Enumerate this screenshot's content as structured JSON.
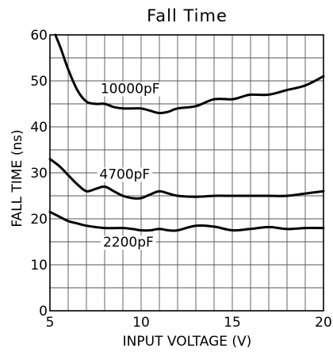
{
  "chart_data": {
    "type": "line",
    "title": "Fall Time",
    "xlabel": "INPUT VOLTAGE (V)",
    "ylabel": "FALL TIME (ns)",
    "xlim": [
      5,
      20
    ],
    "ylim": [
      0,
      60
    ],
    "x_ticks": [
      5,
      10,
      15,
      20
    ],
    "y_ticks": [
      0,
      10,
      20,
      30,
      40,
      50,
      60
    ],
    "x_grid_step": 1,
    "y_grid_step": 5,
    "grid": true,
    "series": [
      {
        "name": "10000pF",
        "points": [
          [
            5.3,
            60
          ],
          [
            5.6,
            57
          ],
          [
            6.0,
            52.5
          ],
          [
            6.5,
            48
          ],
          [
            7.0,
            45.5
          ],
          [
            7.5,
            45
          ],
          [
            8.0,
            45
          ],
          [
            8.5,
            44.3
          ],
          [
            9.0,
            44
          ],
          [
            9.5,
            44
          ],
          [
            10.0,
            44
          ],
          [
            10.5,
            43.5
          ],
          [
            11.0,
            43
          ],
          [
            11.5,
            43.3
          ],
          [
            12.0,
            44
          ],
          [
            13.0,
            44.5
          ],
          [
            14.0,
            46
          ],
          [
            15.0,
            46
          ],
          [
            15.5,
            46.5
          ],
          [
            16.0,
            47
          ],
          [
            17.0,
            47
          ],
          [
            18.0,
            48
          ],
          [
            19.0,
            49
          ],
          [
            20.0,
            51
          ]
        ]
      },
      {
        "name": "4700pF",
        "points": [
          [
            5.0,
            33
          ],
          [
            5.5,
            31.5
          ],
          [
            6.0,
            29.5
          ],
          [
            6.5,
            27.5
          ],
          [
            7.0,
            26
          ],
          [
            7.5,
            26.5
          ],
          [
            8.0,
            27
          ],
          [
            8.5,
            26
          ],
          [
            9.0,
            25
          ],
          [
            9.5,
            24.5
          ],
          [
            10.0,
            24.5
          ],
          [
            10.5,
            25.3
          ],
          [
            11.0,
            26
          ],
          [
            11.5,
            25.5
          ],
          [
            12.0,
            25
          ],
          [
            13.0,
            24.8
          ],
          [
            14.0,
            25
          ],
          [
            15.0,
            25
          ],
          [
            16.0,
            25
          ],
          [
            17.0,
            25
          ],
          [
            18.0,
            25
          ],
          [
            19.0,
            25.5
          ],
          [
            20.0,
            26
          ]
        ]
      },
      {
        "name": "2200pF",
        "points": [
          [
            5.0,
            21.5
          ],
          [
            5.5,
            20.5
          ],
          [
            6.0,
            19.5
          ],
          [
            6.5,
            19
          ],
          [
            7.0,
            18.5
          ],
          [
            8.0,
            18
          ],
          [
            9.0,
            18
          ],
          [
            9.5,
            17.8
          ],
          [
            10.0,
            17.5
          ],
          [
            10.5,
            17.5
          ],
          [
            11.0,
            17.8
          ],
          [
            11.5,
            17.5
          ],
          [
            12.0,
            17.5
          ],
          [
            13.0,
            18.5
          ],
          [
            14.0,
            18.3
          ],
          [
            15.0,
            17.5
          ],
          [
            16.0,
            17.8
          ],
          [
            17.0,
            18.2
          ],
          [
            18.0,
            17.8
          ],
          [
            19.0,
            18
          ],
          [
            20.0,
            18
          ]
        ]
      }
    ],
    "series_labels": [
      {
        "name": "10000pF",
        "x": 9.4,
        "y": 48.2
      },
      {
        "name": "4700pF",
        "x": 9.1,
        "y": 29.6
      },
      {
        "name": "2200pF",
        "x": 9.3,
        "y": 14.8
      }
    ],
    "colors": {
      "line": "#000000",
      "grid": "#555555",
      "background": "#ffffff"
    }
  }
}
